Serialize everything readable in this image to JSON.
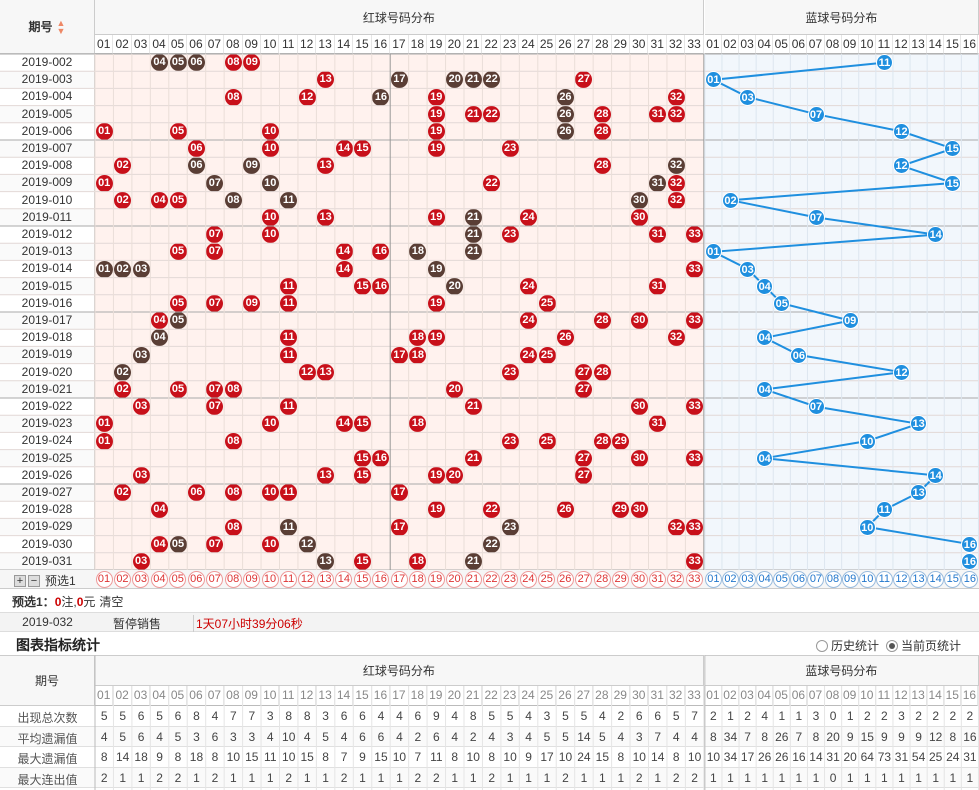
{
  "header": {
    "period_label": "期号",
    "red_title": "红球号码分布",
    "blue_title": "蓝球号码分布",
    "sort_icon": "sort-icon"
  },
  "red_numbers": [
    "01",
    "02",
    "03",
    "04",
    "05",
    "06",
    "07",
    "08",
    "09",
    "10",
    "11",
    "12",
    "13",
    "14",
    "15",
    "16",
    "17",
    "18",
    "19",
    "20",
    "21",
    "22",
    "23",
    "24",
    "25",
    "26",
    "27",
    "28",
    "29",
    "30",
    "31",
    "32",
    "33"
  ],
  "blue_numbers": [
    "01",
    "02",
    "03",
    "04",
    "05",
    "06",
    "07",
    "08",
    "09",
    "10",
    "11",
    "12",
    "13",
    "14",
    "15",
    "16"
  ],
  "draws": [
    {
      "p": "2019-002",
      "r": [
        4,
        5,
        6,
        8,
        9
      ],
      "rd": [
        4,
        5,
        6
      ],
      "b": 11
    },
    {
      "p": "2019-003",
      "r": [
        13,
        17,
        20,
        21,
        22,
        27
      ],
      "rd": [
        17,
        20,
        21,
        22
      ],
      "b": 1
    },
    {
      "p": "2019-004",
      "r": [
        8,
        12,
        16,
        19,
        26,
        32
      ],
      "rd": [
        16,
        26
      ],
      "b": 3
    },
    {
      "p": "2019-005",
      "r": [
        19,
        21,
        22,
        26,
        28,
        31,
        32
      ],
      "rd": [
        26
      ],
      "b": 7
    },
    {
      "p": "2019-006",
      "r": [
        1,
        5,
        10,
        19,
        26,
        28
      ],
      "rd": [
        26
      ],
      "b": 12
    },
    {
      "p": "2019-007",
      "r": [
        6,
        10,
        14,
        15,
        19,
        23
      ],
      "rd": [],
      "b": 15
    },
    {
      "p": "2019-008",
      "r": [
        2,
        6,
        9,
        13,
        28,
        32
      ],
      "rd": [
        6,
        9,
        32
      ],
      "b": 12
    },
    {
      "p": "2019-009",
      "r": [
        1,
        7,
        10,
        22,
        31,
        32
      ],
      "rd": [
        7,
        10,
        31
      ],
      "b": 15
    },
    {
      "p": "2019-010",
      "r": [
        2,
        4,
        5,
        8,
        11,
        30,
        32
      ],
      "rd": [
        8,
        11,
        30
      ],
      "b": 2
    },
    {
      "p": "2019-011",
      "r": [
        10,
        13,
        19,
        21,
        24,
        30
      ],
      "rd": [
        21
      ],
      "b": 7
    },
    {
      "p": "2019-012",
      "r": [
        7,
        10,
        21,
        23,
        31,
        33
      ],
      "rd": [
        21
      ],
      "b": 14
    },
    {
      "p": "2019-013",
      "r": [
        5,
        7,
        14,
        16,
        18,
        21
      ],
      "rd": [
        18,
        21
      ],
      "b": 1
    },
    {
      "p": "2019-014",
      "r": [
        1,
        2,
        3,
        14,
        19,
        33
      ],
      "rd": [
        1,
        2,
        3,
        19
      ],
      "b": 3
    },
    {
      "p": "2019-015",
      "r": [
        11,
        15,
        16,
        20,
        24,
        31
      ],
      "rd": [
        20
      ],
      "b": 4
    },
    {
      "p": "2019-016",
      "r": [
        5,
        7,
        9,
        11,
        19,
        25
      ],
      "rd": [],
      "b": 5
    },
    {
      "p": "2019-017",
      "r": [
        4,
        5,
        24,
        28,
        30,
        33
      ],
      "rd": [
        5
      ],
      "b": 9
    },
    {
      "p": "2019-018",
      "r": [
        4,
        11,
        18,
        19,
        26,
        32
      ],
      "rd": [
        4
      ],
      "b": 4
    },
    {
      "p": "2019-019",
      "r": [
        3,
        11,
        17,
        18,
        24,
        25
      ],
      "rd": [
        3
      ],
      "b": 6
    },
    {
      "p": "2019-020",
      "r": [
        2,
        12,
        13,
        23,
        27,
        28
      ],
      "rd": [
        2
      ],
      "b": 12
    },
    {
      "p": "2019-021",
      "r": [
        2,
        5,
        7,
        8,
        20,
        27
      ],
      "rd": [],
      "b": 4
    },
    {
      "p": "2019-022",
      "r": [
        3,
        7,
        11,
        21,
        30,
        33
      ],
      "rd": [],
      "b": 7
    },
    {
      "p": "2019-023",
      "r": [
        1,
        10,
        14,
        15,
        18,
        31
      ],
      "rd": [],
      "b": 13
    },
    {
      "p": "2019-024",
      "r": [
        1,
        8,
        23,
        25,
        28,
        29
      ],
      "rd": [],
      "b": 10
    },
    {
      "p": "2019-025",
      "r": [
        15,
        16,
        21,
        27,
        30,
        33
      ],
      "rd": [],
      "b": 4
    },
    {
      "p": "2019-026",
      "r": [
        3,
        13,
        15,
        19,
        20,
        27
      ],
      "rd": [],
      "b": 14
    },
    {
      "p": "2019-027",
      "r": [
        2,
        6,
        8,
        10,
        11,
        17
      ],
      "rd": [],
      "b": 13
    },
    {
      "p": "2019-028",
      "r": [
        4,
        19,
        22,
        26,
        29,
        30
      ],
      "rd": [],
      "b": 11
    },
    {
      "p": "2019-029",
      "r": [
        8,
        11,
        17,
        23,
        32,
        33
      ],
      "rd": [
        11,
        23
      ],
      "b": 10
    },
    {
      "p": "2019-030",
      "r": [
        4,
        5,
        7,
        10,
        12,
        22
      ],
      "rd": [
        5,
        12,
        22
      ],
      "b": 16
    },
    {
      "p": "2019-031",
      "r": [
        3,
        13,
        15,
        18,
        21,
        33
      ],
      "rd": [
        13,
        21
      ],
      "b": 16
    }
  ],
  "preselect": {
    "label": "预选1",
    "line": "预选1：0注,0元",
    "count_text": "0",
    "amount_text": "0",
    "zhu": "注,",
    "yuan": "元",
    "clear": "清空"
  },
  "next": {
    "period": "2019-032",
    "status": "暂停销售",
    "countdown": "1天07小时39分06秒"
  },
  "stats": {
    "title": "图表指标统计",
    "opt_history": "历史统计",
    "opt_current": "当前页统计",
    "period_label": "期号",
    "red_title": "红球号码分布",
    "blue_title": "蓝球号码分布",
    "rows": [
      {
        "label": "出现总次数",
        "red": [
          5,
          5,
          6,
          5,
          6,
          8,
          4,
          7,
          7,
          3,
          8,
          8,
          3,
          6,
          6,
          4,
          4,
          6,
          9,
          4,
          8,
          5,
          5,
          4,
          3,
          5,
          5,
          4,
          2,
          6,
          6,
          5,
          7
        ],
        "blue": [
          2,
          1,
          2,
          4,
          1,
          1,
          3,
          0,
          1,
          2,
          2,
          3,
          2,
          2,
          2,
          2
        ]
      },
      {
        "label": "平均遗漏值",
        "red": [
          4,
          5,
          6,
          4,
          5,
          3,
          6,
          3,
          3,
          4,
          10,
          4,
          5,
          4,
          6,
          6,
          4,
          2,
          6,
          4,
          2,
          4,
          3,
          4,
          5,
          5,
          14,
          5,
          4,
          3,
          7,
          4,
          4
        ],
        "blue": [
          8,
          34,
          7,
          8,
          26,
          7,
          8,
          20,
          9,
          15,
          9,
          9,
          9,
          12,
          8,
          16
        ]
      },
      {
        "label": "最大遗漏值",
        "red": [
          8,
          14,
          18,
          9,
          8,
          18,
          8,
          10,
          15,
          11,
          10,
          15,
          8,
          7,
          9,
          15,
          10,
          7,
          11,
          8,
          10,
          8,
          10,
          9,
          17,
          10,
          24,
          15,
          8,
          10,
          14,
          8,
          10
        ],
        "blue": [
          10,
          34,
          17,
          26,
          26,
          16,
          14,
          31,
          20,
          64,
          73,
          31,
          54,
          25,
          24,
          31
        ]
      },
      {
        "label": "最大连出值",
        "red": [
          2,
          1,
          1,
          2,
          2,
          1,
          2,
          1,
          1,
          1,
          2,
          1,
          1,
          2,
          1,
          1,
          1,
          2,
          2,
          1,
          1,
          2,
          1,
          1,
          1,
          2,
          1,
          1,
          1,
          2,
          1,
          2,
          2
        ],
        "blue": [
          1,
          1,
          1,
          1,
          1,
          1,
          1,
          0,
          1,
          1,
          1,
          1,
          1,
          1,
          1,
          1
        ]
      }
    ]
  }
}
